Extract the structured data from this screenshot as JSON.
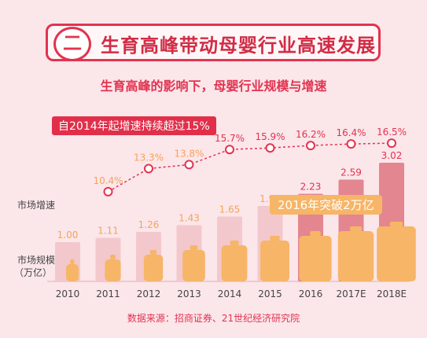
{
  "header": {
    "section_num": "二",
    "title": "生育高峰带动母婴行业高速发展",
    "subtitle": "生育高峰的影响下，母婴行业规模与增速",
    "callout_growth": "自2014年起增速持续超过15%",
    "callout_2016": "2016年突破2万亿",
    "ylabel_growth": "市场增速",
    "ylabel_scale": "市场规模",
    "ylabel_unit": "（万亿）",
    "source": "数据来源：招商证券、21世纪经济研究院"
  },
  "colors": {
    "accent": "#e2334f",
    "bar_light": "#f3c8cc",
    "bar_dark": "#e3868f",
    "bottle": "#f7b567",
    "value_label_light": "#f4a45a",
    "growth_label": "#e2334f"
  },
  "chart_data": {
    "type": "bar",
    "categories": [
      "2010",
      "2011",
      "2012",
      "2013",
      "2014",
      "2015",
      "2016",
      "2017E",
      "2018E"
    ],
    "series": [
      {
        "name": "市场规模",
        "values": [
          1.0,
          1.11,
          1.26,
          1.43,
          1.65,
          1.92,
          2.23,
          2.59,
          3.02
        ],
        "labels": [
          "1.00",
          "1.11",
          "1.26",
          "1.43",
          "1.65",
          "1.92",
          "2.23",
          "2.59",
          "3.02"
        ]
      },
      {
        "name": "市场增速",
        "values": [
          null,
          10.4,
          13.3,
          13.8,
          15.7,
          15.9,
          16.2,
          16.4,
          16.5
        ],
        "labels": [
          "",
          "10.4%",
          "13.3%",
          "13.8%",
          "15.7%",
          "15.9%",
          "16.2%",
          "16.4%",
          "16.5%"
        ]
      }
    ]
  }
}
